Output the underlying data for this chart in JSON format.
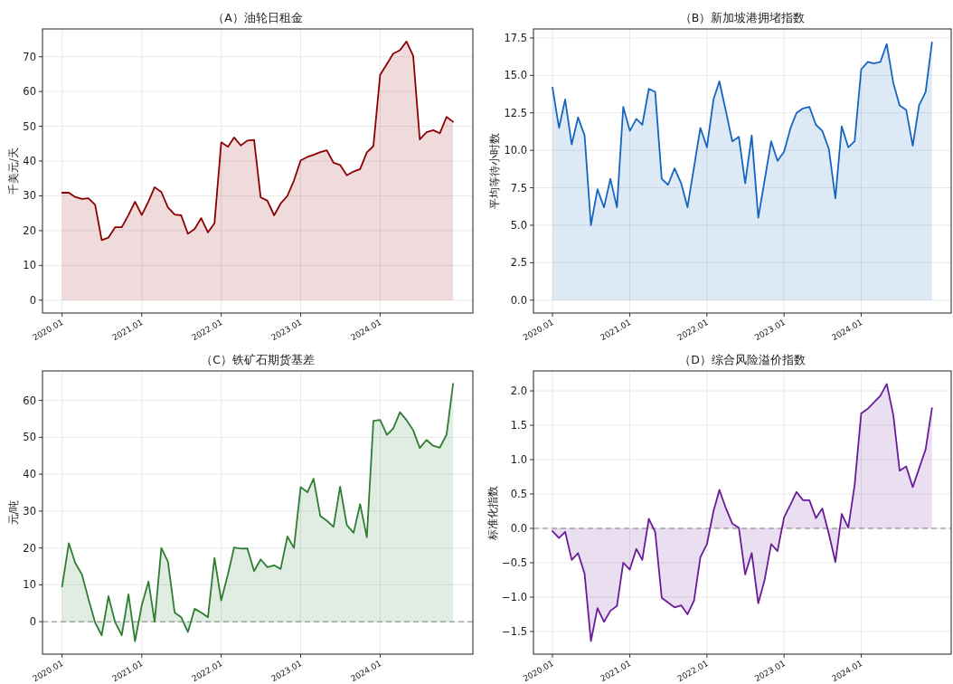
{
  "chart_data": [
    {
      "type": "area",
      "title": "（A）油轮日租金",
      "ylabel": "千美元/天",
      "x": [
        "2020-01",
        "2020-02",
        "2020-03",
        "2020-04",
        "2020-05",
        "2020-06",
        "2020-07",
        "2020-08",
        "2020-09",
        "2020-10",
        "2020-11",
        "2020-12",
        "2021-01",
        "2021-02",
        "2021-03",
        "2021-04",
        "2021-05",
        "2021-06",
        "2021-07",
        "2021-08",
        "2021-09",
        "2021-10",
        "2021-11",
        "2021-12",
        "2022-01",
        "2022-02",
        "2022-03",
        "2022-04",
        "2022-05",
        "2022-06",
        "2022-07",
        "2022-08",
        "2022-09",
        "2022-10",
        "2022-11",
        "2022-12",
        "2023-01",
        "2023-02",
        "2023-03",
        "2023-04",
        "2023-05",
        "2023-06",
        "2023-07",
        "2023-08",
        "2023-09",
        "2023-10",
        "2023-11",
        "2023-12",
        "2024-01",
        "2024-02",
        "2024-03",
        "2024-04",
        "2024-05",
        "2024-06",
        "2024-07",
        "2024-08",
        "2024-09",
        "2024-10",
        "2024-11",
        "2024-12"
      ],
      "series": [
        {
          "color": "#8b0000",
          "values": [
            30.9,
            30.9,
            29.7,
            29.1,
            29.3,
            27.4,
            17.3,
            18.0,
            21.0,
            21.0,
            24.5,
            28.3,
            24.5,
            28.4,
            32.5,
            31.1,
            26.7,
            24.6,
            24.4,
            19.1,
            20.5,
            23.6,
            19.5,
            22.1,
            45.4,
            44.1,
            46.8,
            44.5,
            45.9,
            46.1,
            29.6,
            28.6,
            24.4,
            27.8,
            30.0,
            34.4,
            40.2,
            41.2,
            41.8,
            42.6,
            43.1,
            39.5,
            38.9,
            35.9,
            37.0,
            37.7,
            42.5,
            44.3,
            64.8,
            67.9,
            70.9,
            71.9,
            74.4,
            70.2,
            46.2,
            48.3,
            48.9,
            48.0,
            52.7,
            51.3
          ]
        }
      ],
      "xlim": [
        "2019-10-03",
        "2025-03-02"
      ],
      "xticks": [
        {
          "value": "2020-01",
          "label": "2020.01"
        },
        {
          "value": "2021-01",
          "label": "2021.01"
        },
        {
          "value": "2022-01",
          "label": "2022.01"
        },
        {
          "value": "2023-01",
          "label": "2023.01"
        },
        {
          "value": "2024-01",
          "label": "2024.01"
        }
      ],
      "ylim": [
        -3.7,
        78.0
      ],
      "yticks": [
        0,
        10,
        20,
        30,
        40,
        50,
        60,
        70
      ],
      "grid": true
    },
    {
      "type": "area",
      "title": "（B）新加坡港拥堵指数",
      "ylabel": "平均等待小时数",
      "x": [
        "2020-01",
        "2020-02",
        "2020-03",
        "2020-04",
        "2020-05",
        "2020-06",
        "2020-07",
        "2020-08",
        "2020-09",
        "2020-10",
        "2020-11",
        "2020-12",
        "2021-01",
        "2021-02",
        "2021-03",
        "2021-04",
        "2021-05",
        "2021-06",
        "2021-07",
        "2021-08",
        "2021-09",
        "2021-10",
        "2021-11",
        "2021-12",
        "2022-01",
        "2022-02",
        "2022-03",
        "2022-04",
        "2022-05",
        "2022-06",
        "2022-07",
        "2022-08",
        "2022-09",
        "2022-10",
        "2022-11",
        "2022-12",
        "2023-01",
        "2023-02",
        "2023-03",
        "2023-04",
        "2023-05",
        "2023-06",
        "2023-07",
        "2023-08",
        "2023-09",
        "2023-10",
        "2023-11",
        "2023-12",
        "2024-01",
        "2024-02",
        "2024-03",
        "2024-04",
        "2024-05",
        "2024-06",
        "2024-07",
        "2024-08",
        "2024-09",
        "2024-10",
        "2024-11",
        "2024-12"
      ],
      "series": [
        {
          "color": "#1565c0",
          "values": [
            14.2,
            11.5,
            13.4,
            10.4,
            12.2,
            11.0,
            5.0,
            7.4,
            6.2,
            8.1,
            6.2,
            12.9,
            11.3,
            12.1,
            11.7,
            14.1,
            13.9,
            8.1,
            7.7,
            8.8,
            7.8,
            6.2,
            8.9,
            11.5,
            10.2,
            13.4,
            14.6,
            12.6,
            10.6,
            10.9,
            7.8,
            11.0,
            5.5,
            8.0,
            10.6,
            9.3,
            9.9,
            11.5,
            12.5,
            12.8,
            12.9,
            11.7,
            11.3,
            10.1,
            6.8,
            11.6,
            10.2,
            10.6,
            15.4,
            15.9,
            15.8,
            15.9,
            17.1,
            14.5,
            13.0,
            12.7,
            10.3,
            13.0,
            13.9,
            17.2
          ]
        }
      ],
      "xlim": [
        "2019-10-03",
        "2025-03-02"
      ],
      "xticks": [
        {
          "value": "2020-01",
          "label": "2020.01"
        },
        {
          "value": "2021-01",
          "label": "2021.01"
        },
        {
          "value": "2022-01",
          "label": "2022.01"
        },
        {
          "value": "2023-01",
          "label": "2023.01"
        },
        {
          "value": "2024-01",
          "label": "2024.01"
        }
      ],
      "ylim": [
        -0.86,
        18.1
      ],
      "yticks": [
        {
          "value": 0,
          "label": "0.0"
        },
        2.5,
        {
          "value": 5,
          "label": "5.0"
        },
        7.5,
        {
          "value": 10,
          "label": "10.0"
        },
        12.5,
        {
          "value": 15,
          "label": "15.0"
        },
        17.5
      ],
      "grid": true
    },
    {
      "type": "area",
      "title": "（C）铁矿石期货基差",
      "ylabel": "元/吨",
      "x": [
        "2020-01",
        "2020-02",
        "2020-03",
        "2020-04",
        "2020-05",
        "2020-06",
        "2020-07",
        "2020-08",
        "2020-09",
        "2020-10",
        "2020-11",
        "2020-12",
        "2021-01",
        "2021-02",
        "2021-03",
        "2021-04",
        "2021-05",
        "2021-06",
        "2021-07",
        "2021-08",
        "2021-09",
        "2021-10",
        "2021-11",
        "2021-12",
        "2022-01",
        "2022-02",
        "2022-03",
        "2022-04",
        "2022-05",
        "2022-06",
        "2022-07",
        "2022-08",
        "2022-09",
        "2022-10",
        "2022-11",
        "2022-12",
        "2023-01",
        "2023-02",
        "2023-03",
        "2023-04",
        "2023-05",
        "2023-06",
        "2023-07",
        "2023-08",
        "2023-09",
        "2023-10",
        "2023-11",
        "2023-12",
        "2024-01",
        "2024-02",
        "2024-03",
        "2024-04",
        "2024-05",
        "2024-06",
        "2024-07",
        "2024-08",
        "2024-09",
        "2024-10",
        "2024-11",
        "2024-12"
      ],
      "series": [
        {
          "color": "#2e7d32",
          "values": [
            9.5,
            21.3,
            16.0,
            12.8,
            6.2,
            -0.3,
            -3.7,
            6.9,
            -0.2,
            -3.7,
            7.4,
            -5.3,
            4.5,
            10.9,
            0.0,
            20.0,
            16.3,
            2.5,
            1.2,
            -2.8,
            3.5,
            2.5,
            1.2,
            17.3,
            5.8,
            12.9,
            20.1,
            19.8,
            19.9,
            13.7,
            16.9,
            14.8,
            15.3,
            14.3,
            23.1,
            20.0,
            36.5,
            35.1,
            38.8,
            28.7,
            27.4,
            25.7,
            36.6,
            26.2,
            24.1,
            31.9,
            22.9,
            54.5,
            54.7,
            50.7,
            52.4,
            56.8,
            54.7,
            51.9,
            47.1,
            49.3,
            47.7,
            47.2,
            50.7,
            64.5
          ]
        }
      ],
      "xlim": [
        "2019-10-03",
        "2025-03-02"
      ],
      "xticks": [
        {
          "value": "2020-01",
          "label": "2020.01"
        },
        {
          "value": "2021-01",
          "label": "2021.01"
        },
        {
          "value": "2022-01",
          "label": "2022.01"
        },
        {
          "value": "2023-01",
          "label": "2023.01"
        },
        {
          "value": "2024-01",
          "label": "2024.01"
        }
      ],
      "ylim": [
        -8.8,
        68.0
      ],
      "yticks": [
        0,
        10,
        20,
        30,
        40,
        50,
        60
      ],
      "grid": true,
      "ref_lines": [
        {
          "axis": "y",
          "value": 0,
          "color": "#aaaaaa",
          "line_style": "dashed"
        }
      ]
    },
    {
      "type": "area",
      "title": "（D）综合风险溢价指数",
      "ylabel": "标准化指数",
      "x": [
        "2020-01",
        "2020-02",
        "2020-03",
        "2020-04",
        "2020-05",
        "2020-06",
        "2020-07",
        "2020-08",
        "2020-09",
        "2020-10",
        "2020-11",
        "2020-12",
        "2021-01",
        "2021-02",
        "2021-03",
        "2021-04",
        "2021-05",
        "2021-06",
        "2021-07",
        "2021-08",
        "2021-09",
        "2021-10",
        "2021-11",
        "2021-12",
        "2022-01",
        "2022-02",
        "2022-03",
        "2022-04",
        "2022-05",
        "2022-06",
        "2022-07",
        "2022-08",
        "2022-09",
        "2022-10",
        "2022-11",
        "2022-12",
        "2023-01",
        "2023-02",
        "2023-03",
        "2023-04",
        "2023-05",
        "2023-06",
        "2023-07",
        "2023-08",
        "2023-09",
        "2023-10",
        "2023-11",
        "2023-12",
        "2024-01",
        "2024-02",
        "2024-03",
        "2024-04",
        "2024-05",
        "2024-06",
        "2024-07",
        "2024-08",
        "2024-09",
        "2024-10",
        "2024-11",
        "2024-12"
      ],
      "series": [
        {
          "color": "#6a1b9a",
          "values": [
            -0.04,
            -0.14,
            -0.05,
            -0.46,
            -0.36,
            -0.66,
            -1.64,
            -1.16,
            -1.36,
            -1.2,
            -1.13,
            -0.5,
            -0.6,
            -0.3,
            -0.46,
            0.14,
            -0.05,
            -1.01,
            -1.08,
            -1.15,
            -1.12,
            -1.25,
            -1.05,
            -0.42,
            -0.23,
            0.25,
            0.56,
            0.29,
            0.07,
            0.01,
            -0.67,
            -0.36,
            -1.09,
            -0.75,
            -0.23,
            -0.33,
            0.16,
            0.35,
            0.53,
            0.41,
            0.41,
            0.15,
            0.29,
            -0.08,
            -0.49,
            0.21,
            0.01,
            0.63,
            1.67,
            1.74,
            1.83,
            1.93,
            2.1,
            1.65,
            0.84,
            0.9,
            0.6,
            0.87,
            1.15,
            1.75
          ]
        }
      ],
      "xlim": [
        "2019-10-03",
        "2025-03-02"
      ],
      "xticks": [
        {
          "value": "2020-01",
          "label": "2020.01"
        },
        {
          "value": "2021-01",
          "label": "2021.01"
        },
        {
          "value": "2022-01",
          "label": "2022.01"
        },
        {
          "value": "2023-01",
          "label": "2023.01"
        },
        {
          "value": "2024-01",
          "label": "2024.01"
        }
      ],
      "ylim": [
        -1.83,
        2.29
      ],
      "yticks": [
        {
          "value": -1.5,
          "label": "−1.5"
        },
        {
          "value": -1,
          "label": "−1.0"
        },
        {
          "value": -0.5,
          "label": "−0.5"
        },
        {
          "value": 0,
          "label": "0.0"
        },
        0.5,
        {
          "value": 1,
          "label": "1.0"
        },
        1.5,
        {
          "value": 2,
          "label": "2.0"
        }
      ],
      "grid": true,
      "ref_lines": [
        {
          "axis": "y",
          "value": 0,
          "color": "#aaaaaa",
          "line_style": "dashed"
        }
      ]
    }
  ]
}
